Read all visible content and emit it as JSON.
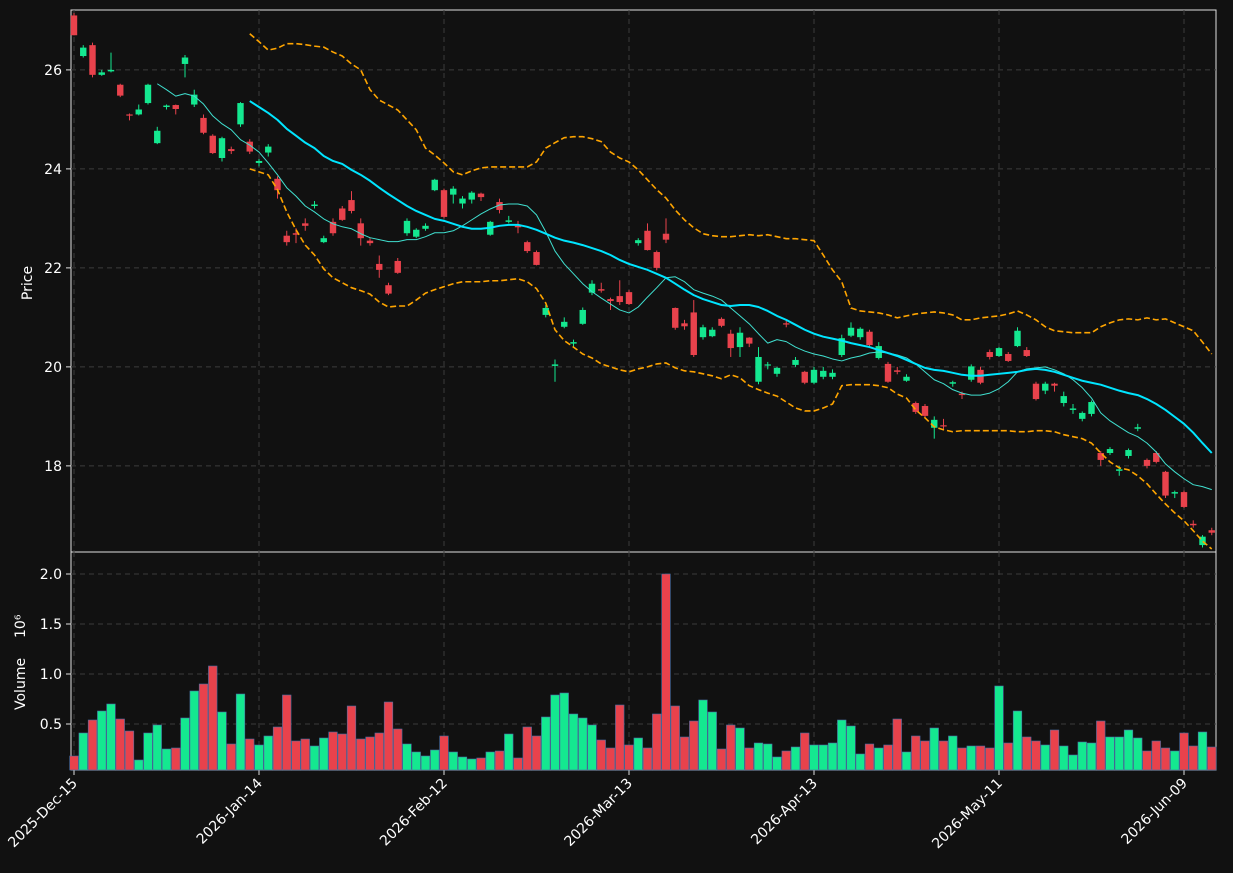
{
  "chart_data": {
    "type": "candlestick",
    "ylabel": "Price",
    "y2label": "Volume",
    "y2_offset_label": "10⁶",
    "up_color": "#14e890",
    "down_color": "#e8424c",
    "grid": true,
    "categories": [
      "2025-Dec-15",
      null,
      null,
      null,
      null,
      null,
      null,
      null,
      null,
      null,
      null,
      null,
      null,
      null,
      null,
      null,
      null,
      null,
      null,
      null,
      "2026-Jan-14",
      null,
      null,
      null,
      null,
      null,
      null,
      null,
      null,
      null,
      null,
      null,
      null,
      null,
      null,
      null,
      null,
      null,
      null,
      null,
      "2026-Feb-12",
      null,
      null,
      null,
      null,
      null,
      null,
      null,
      null,
      null,
      null,
      null,
      null,
      null,
      null,
      null,
      null,
      null,
      null,
      null,
      "2026-Mar-13",
      null,
      null,
      null,
      null,
      null,
      null,
      null,
      null,
      null,
      null,
      null,
      null,
      null,
      null,
      null,
      null,
      null,
      null,
      null,
      "2026-Apr-13",
      null,
      null,
      null,
      null,
      null,
      null,
      null,
      null,
      null,
      null,
      null,
      null,
      null,
      null,
      null,
      null,
      null,
      null,
      null,
      "2026-May-11",
      null,
      null,
      null,
      null,
      null,
      null,
      null,
      null,
      null,
      null,
      null,
      null,
      null,
      null,
      null,
      null,
      null,
      null,
      null,
      "2026-Jun-09",
      null,
      null,
      null
    ],
    "open": [
      27.1,
      26.28,
      26.5,
      25.9,
      25.97,
      25.7,
      25.1,
      25.1,
      25.33,
      24.52,
      25.25,
      25.29,
      26.12,
      25.3,
      25.03,
      24.67,
      24.22,
      24.4,
      24.9,
      24.55,
      24.12,
      24.33,
      23.8,
      22.65,
      22.7,
      22.9,
      23.25,
      22.52,
      22.93,
      23.2,
      23.37,
      22.9,
      22.55,
      22.08,
      21.65,
      22.14,
      22.7,
      22.63,
      22.79,
      23.57,
      23.57,
      23.48,
      23.3,
      23.38,
      23.5,
      22.67,
      23.33,
      22.93,
      22.85,
      22.52,
      22.32,
      21.05,
      20.02,
      20.81,
      20.47,
      20.87,
      21.5,
      21.57,
      21.37,
      21.43,
      21.51,
      22.5,
      22.75,
      22.32,
      22.69,
      21.19,
      20.88,
      21.1,
      20.6,
      20.62,
      20.97,
      20.67,
      20.4,
      20.59,
      19.7,
      20.03,
      19.86,
      20.88,
      20.04,
      19.9,
      19.68,
      19.8,
      19.8,
      20.24,
      20.63,
      20.6,
      20.71,
      20.18,
      20.06,
      19.93,
      19.72,
      19.27,
      19.21,
      18.77,
      18.82,
      19.66,
      19.46,
      19.74,
      19.94,
      20.3,
      20.22,
      20.26,
      20.42,
      20.34,
      19.66,
      19.52,
      19.66,
      19.27,
      19.13,
      18.95,
      19.05,
      18.26,
      18.26,
      17.9,
      18.2,
      18.75,
      18.12,
      18.26,
      17.88,
      17.44,
      17.47,
      16.83,
      16.4,
      16.7
    ],
    "high": [
      27.15,
      26.5,
      26.55,
      26.0,
      26.35,
      25.72,
      25.12,
      25.3,
      25.72,
      24.85,
      25.3,
      25.3,
      26.3,
      25.6,
      25.1,
      24.7,
      24.65,
      24.45,
      25.35,
      24.6,
      24.2,
      24.5,
      23.85,
      22.75,
      22.8,
      23.0,
      23.35,
      22.65,
      23.0,
      23.25,
      23.55,
      23.0,
      22.6,
      22.25,
      21.7,
      22.2,
      23.0,
      22.8,
      22.9,
      23.8,
      23.6,
      23.65,
      23.45,
      23.55,
      23.52,
      22.95,
      23.4,
      23.05,
      22.95,
      22.55,
      22.35,
      21.25,
      20.15,
      21.0,
      20.55,
      21.2,
      21.75,
      21.7,
      21.4,
      21.75,
      21.55,
      22.6,
      22.9,
      22.35,
      23.0,
      21.2,
      20.95,
      21.35,
      20.85,
      20.8,
      21.0,
      20.75,
      20.8,
      20.6,
      20.4,
      20.1,
      20.0,
      20.95,
      20.2,
      19.92,
      20.0,
      20.0,
      19.95,
      20.65,
      20.9,
      20.8,
      20.75,
      20.5,
      20.1,
      20.0,
      19.85,
      19.3,
      19.25,
      19.0,
      18.95,
      19.72,
      19.5,
      20.05,
      20.0,
      20.35,
      20.4,
      20.3,
      20.8,
      20.4,
      19.7,
      19.7,
      19.68,
      19.5,
      19.25,
      19.1,
      19.32,
      18.3,
      18.38,
      18.0,
      18.35,
      18.85,
      18.15,
      18.3,
      17.9,
      17.5,
      17.5,
      16.9,
      16.6,
      16.75
    ],
    "low": [
      26.7,
      26.25,
      25.85,
      25.88,
      25.95,
      25.45,
      24.98,
      25.08,
      25.3,
      24.5,
      25.2,
      25.1,
      25.85,
      25.25,
      24.7,
      24.3,
      24.15,
      24.3,
      24.85,
      24.3,
      24.05,
      24.25,
      23.4,
      22.45,
      22.5,
      22.75,
      23.2,
      22.5,
      22.65,
      22.95,
      23.1,
      22.45,
      22.45,
      21.8,
      21.45,
      21.88,
      22.65,
      22.6,
      22.75,
      23.55,
      23.0,
      23.3,
      23.2,
      23.3,
      23.35,
      22.65,
      23.1,
      22.9,
      22.7,
      22.3,
      22.05,
      21.0,
      19.7,
      20.78,
      20.4,
      20.85,
      21.45,
      21.5,
      21.15,
      21.25,
      21.25,
      22.45,
      22.35,
      21.95,
      22.5,
      20.75,
      20.75,
      20.2,
      20.55,
      20.6,
      20.8,
      20.2,
      20.2,
      20.4,
      19.65,
      19.95,
      19.8,
      20.8,
      20.0,
      19.65,
      19.65,
      19.75,
      19.75,
      20.2,
      20.6,
      20.55,
      20.4,
      20.15,
      19.68,
      19.85,
      19.7,
      19.05,
      18.98,
      18.55,
      18.72,
      19.6,
      19.35,
      19.7,
      19.65,
      20.15,
      20.2,
      20.1,
      20.4,
      20.2,
      19.32,
      19.45,
      19.5,
      19.2,
      19.05,
      18.9,
      19.0,
      18.0,
      18.22,
      17.8,
      18.15,
      18.7,
      17.95,
      18.05,
      17.35,
      17.35,
      17.15,
      16.75,
      16.35,
      16.6
    ],
    "close": [
      26.7,
      26.45,
      25.9,
      25.95,
      26.0,
      25.48,
      25.08,
      25.2,
      25.7,
      24.77,
      25.28,
      25.21,
      26.25,
      25.5,
      24.73,
      24.32,
      24.62,
      24.36,
      25.33,
      24.35,
      24.16,
      24.45,
      23.57,
      22.52,
      22.67,
      22.85,
      23.28,
      22.6,
      22.7,
      22.97,
      23.15,
      22.6,
      22.5,
      21.96,
      21.48,
      21.9,
      22.95,
      22.77,
      22.85,
      23.78,
      23.03,
      23.6,
      23.4,
      23.52,
      23.43,
      22.93,
      23.17,
      22.96,
      22.82,
      22.34,
      22.06,
      21.19,
      20.05,
      20.91,
      20.5,
      21.15,
      21.68,
      21.54,
      21.33,
      21.31,
      21.27,
      22.56,
      22.36,
      22.0,
      22.57,
      20.79,
      20.82,
      20.24,
      20.8,
      20.75,
      20.83,
      20.38,
      20.69,
      20.47,
      20.2,
      20.05,
      19.98,
      20.86,
      20.14,
      19.68,
      19.94,
      19.92,
      19.88,
      20.58,
      20.79,
      20.77,
      20.44,
      20.42,
      19.7,
      19.9,
      19.8,
      19.09,
      19.01,
      18.93,
      18.8,
      19.69,
      19.43,
      20.01,
      19.68,
      20.2,
      20.38,
      20.12,
      20.73,
      20.22,
      19.35,
      19.66,
      19.62,
      19.41,
      19.16,
      19.07,
      19.29,
      18.12,
      18.34,
      17.93,
      18.32,
      18.78,
      18.0,
      18.08,
      17.4,
      17.47,
      17.17,
      16.8,
      16.57,
      16.65
    ],
    "volume": [
      0.18,
      0.41,
      0.54,
      0.63,
      0.7,
      0.55,
      0.43,
      0.14,
      0.41,
      0.49,
      0.25,
      0.26,
      0.56,
      0.83,
      0.9,
      1.08,
      0.62,
      0.3,
      0.8,
      0.35,
      0.29,
      0.38,
      0.47,
      0.79,
      0.33,
      0.35,
      0.28,
      0.36,
      0.42,
      0.4,
      0.68,
      0.35,
      0.37,
      0.41,
      0.72,
      0.45,
      0.3,
      0.22,
      0.18,
      0.24,
      0.38,
      0.22,
      0.17,
      0.15,
      0.16,
      0.22,
      0.23,
      0.4,
      0.16,
      0.47,
      0.38,
      0.57,
      0.79,
      0.81,
      0.6,
      0.56,
      0.49,
      0.34,
      0.26,
      0.69,
      0.29,
      0.36,
      0.26,
      0.6,
      2.0,
      0.68,
      0.37,
      0.53,
      0.74,
      0.62,
      0.25,
      0.49,
      0.46,
      0.26,
      0.31,
      0.3,
      0.17,
      0.23,
      0.27,
      0.41,
      0.29,
      0.29,
      0.31,
      0.54,
      0.48,
      0.2,
      0.3,
      0.26,
      0.29,
      0.55,
      0.22,
      0.38,
      0.33,
      0.46,
      0.33,
      0.38,
      0.26,
      0.28,
      0.28,
      0.26,
      0.88,
      0.31,
      0.63,
      0.37,
      0.33,
      0.29,
      0.44,
      0.28,
      0.19,
      0.32,
      0.31,
      0.53,
      0.37,
      0.37,
      0.44,
      0.36,
      0.23,
      0.33,
      0.26,
      0.23,
      0.41,
      0.28,
      0.42,
      0.27
    ],
    "series": [
      {
        "color": "#40e0d0",
        "width": 1,
        "dash": false,
        "values": [
          null,
          null,
          null,
          null,
          null,
          null,
          null,
          null,
          null,
          25.72,
          25.6,
          25.47,
          25.52,
          25.47,
          25.31,
          25.07,
          24.91,
          24.79,
          24.59,
          24.48,
          24.34,
          24.12,
          23.88,
          23.62,
          23.45,
          23.25,
          23.13,
          22.99,
          22.89,
          22.83,
          22.79,
          22.69,
          22.61,
          22.57,
          22.53,
          22.53,
          22.57,
          22.57,
          22.63,
          22.71,
          22.71,
          22.75,
          22.85,
          22.97,
          23.09,
          23.19,
          23.27,
          23.29,
          23.29,
          23.25,
          23.07,
          22.73,
          22.34,
          22.08,
          21.88,
          21.68,
          21.52,
          21.39,
          21.27,
          21.15,
          21.09,
          21.21,
          21.41,
          21.6,
          21.8,
          21.82,
          21.72,
          21.56,
          21.49,
          21.43,
          21.35,
          21.19,
          21.03,
          20.87,
          20.67,
          20.48,
          20.55,
          20.51,
          20.4,
          20.32,
          20.26,
          20.22,
          20.16,
          20.12,
          20.18,
          20.22,
          20.28,
          20.3,
          20.28,
          20.24,
          20.18,
          20.06,
          19.9,
          19.74,
          19.66,
          19.54,
          19.47,
          19.43,
          19.43,
          19.47,
          19.56,
          19.7,
          19.9,
          19.96,
          19.98,
          20.0,
          19.94,
          19.86,
          19.74,
          19.58,
          19.37,
          19.07,
          18.91,
          18.79,
          18.67,
          18.59,
          18.46,
          18.28,
          18.04,
          17.88,
          17.74,
          17.62,
          17.58,
          17.52
        ]
      },
      {
        "color": "#00e5ff",
        "width": 2,
        "dash": false,
        "values": [
          null,
          null,
          null,
          null,
          null,
          null,
          null,
          null,
          null,
          null,
          null,
          null,
          null,
          null,
          null,
          null,
          null,
          null,
          null,
          25.37,
          25.25,
          25.13,
          24.99,
          24.81,
          24.67,
          24.53,
          24.42,
          24.26,
          24.16,
          24.1,
          23.98,
          23.88,
          23.76,
          23.62,
          23.49,
          23.37,
          23.25,
          23.15,
          23.07,
          22.99,
          22.95,
          22.89,
          22.83,
          22.79,
          22.79,
          22.81,
          22.85,
          22.87,
          22.87,
          22.83,
          22.77,
          22.69,
          22.61,
          22.55,
          22.51,
          22.46,
          22.4,
          22.34,
          22.26,
          22.16,
          22.08,
          22.02,
          21.96,
          21.88,
          21.8,
          21.68,
          21.56,
          21.45,
          21.37,
          21.31,
          21.25,
          21.23,
          21.25,
          21.25,
          21.21,
          21.13,
          21.03,
          20.95,
          20.85,
          20.75,
          20.67,
          20.61,
          20.57,
          20.53,
          20.48,
          20.44,
          20.4,
          20.34,
          20.28,
          20.22,
          20.14,
          20.06,
          19.98,
          19.94,
          19.92,
          19.88,
          19.84,
          19.82,
          19.82,
          19.84,
          19.86,
          19.88,
          19.9,
          19.94,
          19.96,
          19.94,
          19.9,
          19.84,
          19.78,
          19.72,
          19.68,
          19.64,
          19.58,
          19.52,
          19.47,
          19.43,
          19.35,
          19.25,
          19.13,
          18.99,
          18.85,
          18.67,
          18.46,
          18.26
        ]
      },
      {
        "color": "#ffa500",
        "width": 1.6,
        "dash": true,
        "values": [
          null,
          null,
          null,
          null,
          null,
          null,
          null,
          null,
          null,
          null,
          null,
          null,
          null,
          null,
          null,
          null,
          null,
          null,
          null,
          26.73,
          26.57,
          26.4,
          26.44,
          26.53,
          26.53,
          26.51,
          26.48,
          26.46,
          26.36,
          26.28,
          26.12,
          26.0,
          25.6,
          25.39,
          25.29,
          25.19,
          24.99,
          24.79,
          24.42,
          24.28,
          24.12,
          23.94,
          23.88,
          23.96,
          24.02,
          24.04,
          24.04,
          24.04,
          24.04,
          24.04,
          24.14,
          24.42,
          24.53,
          24.63,
          24.65,
          24.65,
          24.61,
          24.55,
          24.34,
          24.22,
          24.14,
          23.98,
          23.78,
          23.58,
          23.41,
          23.17,
          22.97,
          22.81,
          22.69,
          22.65,
          22.63,
          22.63,
          22.65,
          22.67,
          22.65,
          22.67,
          22.63,
          22.59,
          22.59,
          22.57,
          22.55,
          22.26,
          21.96,
          21.72,
          21.19,
          21.13,
          21.11,
          21.09,
          21.05,
          20.99,
          21.03,
          21.07,
          21.09,
          21.11,
          21.09,
          21.05,
          20.95,
          20.95,
          20.99,
          21.01,
          21.03,
          21.07,
          21.13,
          21.05,
          20.95,
          20.81,
          20.73,
          20.71,
          20.69,
          20.69,
          20.69,
          20.81,
          20.89,
          20.95,
          20.97,
          20.95,
          20.99,
          20.95,
          20.97,
          20.89,
          20.81,
          20.73,
          20.5,
          20.26
        ]
      },
      {
        "color": "#ffa500",
        "width": 1.6,
        "dash": true,
        "values": [
          null,
          null,
          null,
          null,
          null,
          null,
          null,
          null,
          null,
          null,
          null,
          null,
          null,
          null,
          null,
          null,
          null,
          null,
          null,
          24.0,
          23.94,
          23.88,
          23.58,
          23.13,
          22.77,
          22.46,
          22.26,
          21.98,
          21.8,
          21.7,
          21.6,
          21.54,
          21.47,
          21.31,
          21.21,
          21.23,
          21.23,
          21.35,
          21.49,
          21.56,
          21.62,
          21.68,
          21.72,
          21.72,
          21.72,
          21.74,
          21.74,
          21.76,
          21.78,
          21.72,
          21.58,
          21.29,
          20.75,
          20.53,
          20.4,
          20.26,
          20.18,
          20.06,
          20.0,
          19.94,
          19.9,
          19.96,
          20.0,
          20.06,
          20.08,
          19.98,
          19.92,
          19.9,
          19.86,
          19.82,
          19.76,
          19.84,
          19.78,
          19.62,
          19.54,
          19.47,
          19.41,
          19.29,
          19.17,
          19.11,
          19.11,
          19.17,
          19.25,
          19.62,
          19.64,
          19.64,
          19.64,
          19.62,
          19.58,
          19.45,
          19.37,
          19.13,
          18.97,
          18.79,
          18.73,
          18.69,
          18.71,
          18.71,
          18.71,
          18.71,
          18.71,
          18.71,
          18.69,
          18.69,
          18.71,
          18.71,
          18.69,
          18.63,
          18.59,
          18.55,
          18.46,
          18.26,
          18.08,
          17.96,
          17.92,
          17.8,
          17.64,
          17.43,
          17.23,
          17.05,
          16.89,
          16.69,
          16.48,
          16.32
        ]
      }
    ],
    "ylim": [
      16.26,
      27.21
    ],
    "yticks": [
      18,
      20,
      22,
      24,
      26
    ],
    "y2lim": [
      0.04,
      2.22
    ],
    "y2ticks": [
      0.5,
      {
        "value": 1,
        "label": "1.0"
      },
      1.5,
      {
        "value": 2,
        "label": "2.0"
      }
    ]
  }
}
